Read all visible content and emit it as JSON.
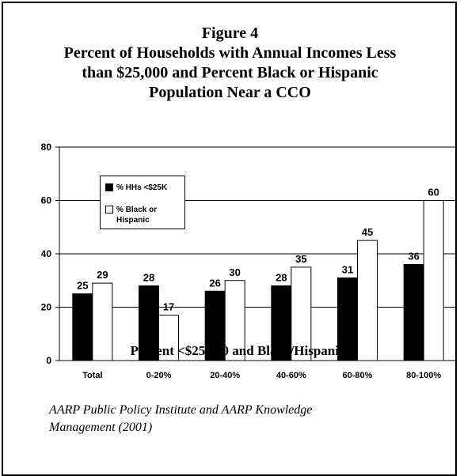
{
  "chart_data": {
    "type": "bar",
    "title_lines": [
      "Figure 4",
      "Percent of Households with Annual Incomes Less",
      "than $25,000 and Percent Black or Hispanic",
      "Population Near a CCO"
    ],
    "categories": [
      "Total",
      "0-20%",
      "20-40%",
      "40-60%",
      "60-80%",
      "80-100%"
    ],
    "series": [
      {
        "name": "% HHs <$25K",
        "values": [
          25,
          28,
          26,
          28,
          31,
          36
        ],
        "color": "#000000"
      },
      {
        "name": "% Black or Hispanic",
        "values": [
          29,
          17,
          30,
          35,
          45,
          60
        ],
        "color": "#ffffff"
      }
    ],
    "xlabel": "Percent <$25,000 and Black/Hispanic",
    "ylabel": "",
    "ylim": [
      0,
      80
    ],
    "yticks": [
      "0",
      "20",
      "40",
      "60",
      "80"
    ],
    "grid": true,
    "legend_position": "top-left"
  },
  "legend": {
    "item1": "% HHs <$25K",
    "item2_line1": "% Black or",
    "item2_line2": "Hispanic"
  },
  "source": {
    "line1": "AARP Public Policy Institute and AARP Knowledge",
    "line2": "Management (2001)"
  }
}
